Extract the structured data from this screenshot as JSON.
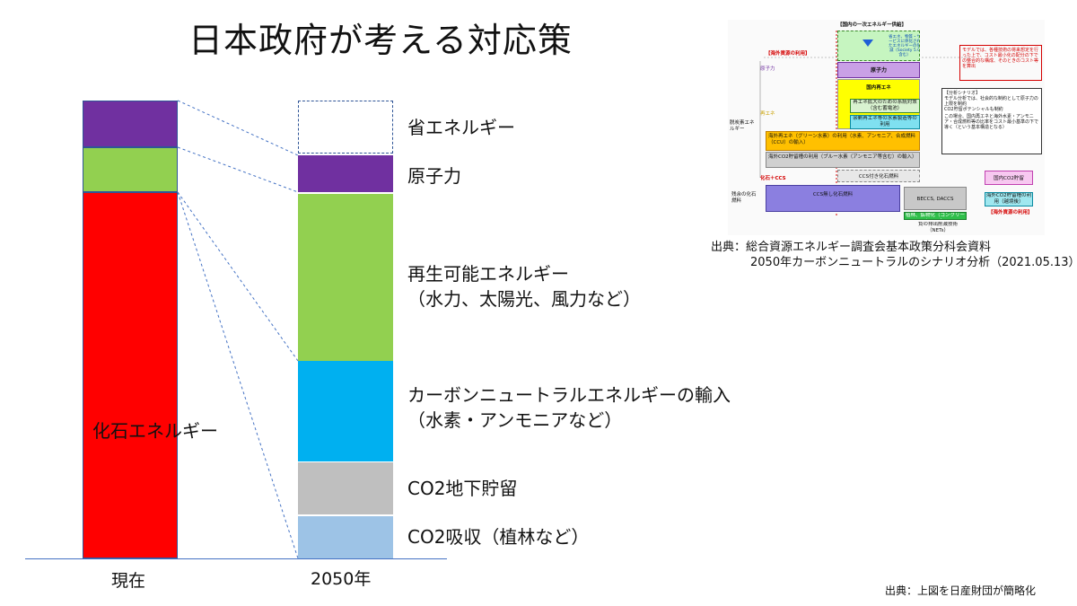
{
  "title": "日本政府が考える対応策",
  "chart_data": {
    "type": "bar",
    "categories": [
      "現在",
      "2050年"
    ],
    "current_segments": [
      {
        "name": "化石エネルギー",
        "color": "#ff0000"
      },
      {
        "name": "再生可能エネルギー",
        "color": "#92d050"
      },
      {
        "name": "原子力",
        "color": "#7030a0"
      }
    ],
    "future_segments": [
      {
        "label": "CO2吸収（植林など）",
        "color": "#9dc3e6"
      },
      {
        "label": "CO2地下貯留",
        "color": "#bfbfbf"
      },
      {
        "label_line1": "カーボンニュートラルエネルギーの輸入",
        "label_line2": "（水素・アンモニアなど）",
        "color": "#00b0f0"
      },
      {
        "label_line1": "再生可能エネルギー",
        "label_line2": "（水力、太陽光、風力など）",
        "color": "#92d050"
      },
      {
        "label": "原子力",
        "color": "#7030a0"
      },
      {
        "label": "省エネルギー",
        "style": "dashed"
      }
    ],
    "bar_label_current": "化石エネルギー"
  },
  "source": {
    "line1": "出典：総合資源エネルギー調査会基本政策分科会資料",
    "line2": "2050年カーボンニュートラルのシナリオ分析（2021.05.13）"
  },
  "credit": "出典：上図を日産財団が簡略化",
  "reference_figure": {
    "top_header": "【国内の一次エネルギー供給】",
    "overseas_use": "【海外資源の利用】",
    "overseas_use_bottom": "【海外資源の利用】",
    "digital_note": "省エネ、物質・サービスに体化されたエネルギーの低減（Society 5.0含む）",
    "row_nuclear": "原子力",
    "row_renew": "再エネ",
    "row_fossil_ccs": "化石＋CCS",
    "decarb_label": "脱炭素エネルギー",
    "remaining_fossil": "残余の化石燃料",
    "box_nuclear": "原子力",
    "box_domestic_renew": "国内再エネ",
    "box_renew_grid": "再エネ拡大のための系統対策（含む蓄電池）",
    "box_surplus": "余剰再エネ等の水素製造等の利用",
    "box_overseas_green": "海外再エネ（グリーン水素）の利用（水素、アンモニア、合成燃料（CCU）の輸入）",
    "box_overseas_co2": "海外CO2貯留槽の利用（ブルー水素（アンモニア等含む）の輸入）",
    "box_ccs_fossil": "CCS付き化石燃料",
    "box_no_ccs": "CCS無し化石燃料",
    "box_beccs": "BECCS, DACCS",
    "box_nets": "負の排出削減技術（NETs）",
    "box_afforest": "植林、鉱物化（コンクリートCCU）",
    "box_domestic_co2": "国内CO2貯留",
    "box_overseas_co2_storage": "海外CO2貯留槽の利用（越境後）",
    "red_note": "モデルでは、各種技術の将来想定を行った上で、コスト最小化の配分の下での整合的な構成、そのときのコスト等を算出",
    "scenario_title": "【分析シナリオ】",
    "scenario_1": "モデル分析では、社会的な制約として原子力の上限を制約",
    "scenario_2": "CO2貯留ポテンシャルも制約",
    "scenario_3": "この場合、国内再エネと海外水素・アンモニア・合成燃料等の比率をコスト最小基準の下で導く（という基本構造となる）"
  }
}
